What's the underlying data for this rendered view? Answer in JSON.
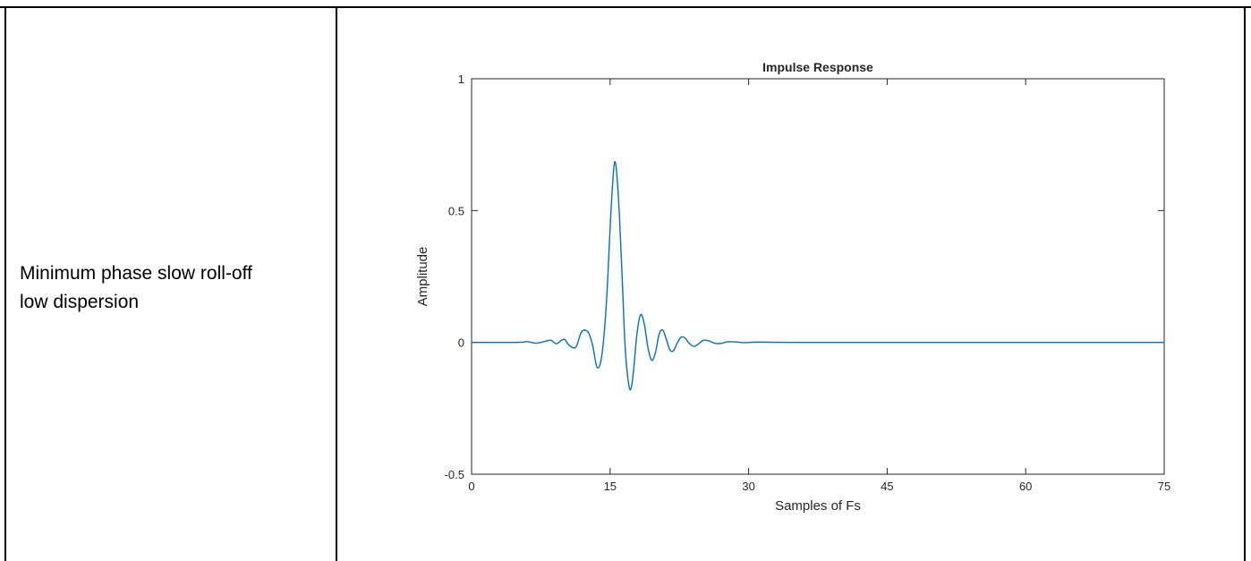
{
  "description": {
    "line1": "Minimum phase slow roll-off",
    "line2": "low dispersion"
  },
  "chart_data": {
    "type": "line",
    "title": "Impulse Response",
    "xlabel": "Samples of Fs",
    "ylabel": "Amplitude",
    "xlim": [
      0,
      75
    ],
    "ylim": [
      -0.5,
      1
    ],
    "xticks": [
      0,
      15,
      30,
      45,
      60,
      75
    ],
    "yticks": [
      -0.5,
      0,
      0.5,
      1
    ],
    "ytick_labels": [
      "-0.5",
      "0",
      "0.5",
      "1"
    ],
    "grid": false,
    "line_color": "#0072BD",
    "series": [
      {
        "x": [
          0,
          5,
          6,
          7,
          8,
          8.6,
          9.2,
          10,
          10.6,
          11.3,
          11.9,
          12.6,
          13.1,
          13.6,
          14.1,
          14.6,
          15.1,
          15.5,
          15.9,
          16.3,
          16.6,
          16.9,
          17.2,
          17.5,
          17.9,
          18.3,
          18.7,
          19.1,
          19.5,
          19.9,
          20.3,
          20.7,
          21.1,
          21.5,
          21.9,
          22.3,
          22.7,
          23.1,
          23.6,
          24.1,
          24.6,
          25.1,
          25.7,
          26.3,
          27,
          27.7,
          28.5,
          29.5,
          31,
          35,
          40,
          75
        ],
        "y": [
          0,
          0,
          0.003,
          -0.003,
          0.004,
          0.008,
          -0.005,
          0.012,
          -0.012,
          -0.018,
          0.04,
          0.04,
          -0.01,
          -0.095,
          -0.05,
          0.15,
          0.5,
          0.685,
          0.55,
          0.25,
          0,
          -0.13,
          -0.18,
          -0.12,
          0.03,
          0.105,
          0.07,
          -0.02,
          -0.068,
          -0.04,
          0.03,
          0.047,
          0.01,
          -0.03,
          -0.03,
          0.0,
          0.02,
          0.017,
          -0.005,
          -0.015,
          -0.005,
          0.008,
          0.006,
          -0.003,
          -0.004,
          0.002,
          0.002,
          -0.001,
          0.001,
          0,
          0,
          0
        ]
      }
    ]
  }
}
